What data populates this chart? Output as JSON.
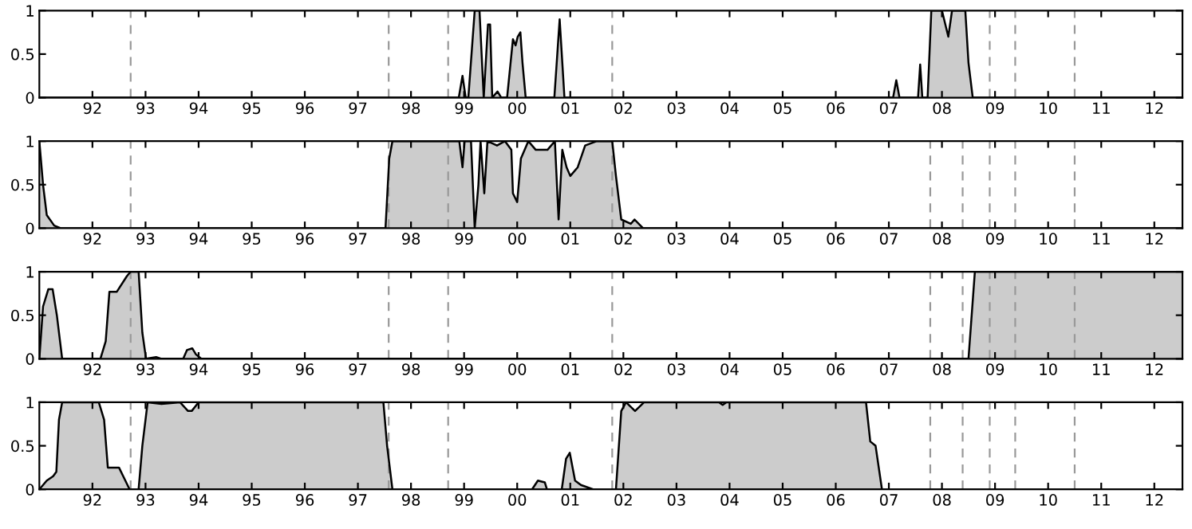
{
  "chart_data": [
    {
      "type": "area",
      "xlim": [
        1991.0,
        2012.53
      ],
      "ylim": [
        0,
        1
      ],
      "yticks": [
        0,
        0.5,
        1
      ],
      "xticks": [
        {
          "value": 1992,
          "label": "92"
        },
        {
          "value": 1993,
          "label": "93"
        },
        {
          "value": 1994,
          "label": "94"
        },
        {
          "value": 1995,
          "label": "95"
        },
        {
          "value": 1996,
          "label": "96"
        },
        {
          "value": 1997,
          "label": "97"
        },
        {
          "value": 1998,
          "label": "98"
        },
        {
          "value": 1999,
          "label": "99"
        },
        {
          "value": 2000,
          "label": "00"
        },
        {
          "value": 2001,
          "label": "01"
        },
        {
          "value": 2002,
          "label": "02"
        },
        {
          "value": 2003,
          "label": "03"
        },
        {
          "value": 2004,
          "label": "04"
        },
        {
          "value": 2005,
          "label": "05"
        },
        {
          "value": 2006,
          "label": "06"
        },
        {
          "value": 2007,
          "label": "07"
        },
        {
          "value": 2008,
          "label": "08"
        },
        {
          "value": 2009,
          "label": "09"
        },
        {
          "value": 2010,
          "label": "10"
        },
        {
          "value": 2011,
          "label": "11"
        },
        {
          "value": 2012,
          "label": "12"
        }
      ],
      "grid": false,
      "legend": false,
      "ref_lines": [
        {
          "axis": "x",
          "value": 1992.72,
          "color": "#999999",
          "line_style": "dashed"
        },
        {
          "axis": "x",
          "value": 1997.58,
          "color": "#999999",
          "line_style": "dashed"
        },
        {
          "axis": "x",
          "value": 1998.7,
          "color": "#999999",
          "line_style": "dashed"
        },
        {
          "axis": "x",
          "value": 2001.79,
          "color": "#999999",
          "line_style": "dashed"
        },
        {
          "axis": "x",
          "value": 2008.9,
          "color": "#999999",
          "line_style": "dashed"
        },
        {
          "axis": "x",
          "value": 2009.38,
          "color": "#999999",
          "line_style": "dashed"
        },
        {
          "axis": "x",
          "value": 2010.5,
          "color": "#999999",
          "line_style": "dashed"
        }
      ],
      "series": [
        {
          "color": "#cccccc",
          "x": [
            1991.0,
            1998.9,
            1998.97,
            1999.03,
            1999.08,
            1999.2,
            1999.29,
            1999.37,
            1999.45,
            1999.49,
            1999.53,
            1999.63,
            1999.7,
            1999.81,
            1999.92,
            1999.97,
            2000.01,
            2000.06,
            2000.1,
            2000.16,
            2000.7,
            2000.8,
            2000.89,
            2007.08,
            2007.14,
            2007.2,
            2007.55,
            2007.59,
            2007.63,
            2007.73,
            2007.8,
            2008.0,
            2008.12,
            2008.19,
            2008.44,
            2008.5,
            2008.58,
            2012.53
          ],
          "values": [
            0,
            0,
            0.25,
            0,
            0,
            1,
            1,
            0,
            0.84,
            0.84,
            0,
            0.07,
            0,
            0,
            0.67,
            0.6,
            0.7,
            0.75,
            0.4,
            0,
            0,
            0.9,
            0,
            0,
            0.2,
            0,
            0,
            0.38,
            0,
            0,
            1,
            1,
            0.7,
            1,
            1,
            0.4,
            0,
            0
          ]
        }
      ]
    },
    {
      "type": "area",
      "xlim": [
        1991.0,
        2012.53
      ],
      "ylim": [
        0,
        1
      ],
      "yticks": [
        0,
        0.5,
        1
      ],
      "xticks": [
        {
          "value": 1992,
          "label": "92"
        },
        {
          "value": 1993,
          "label": "93"
        },
        {
          "value": 1994,
          "label": "94"
        },
        {
          "value": 1995,
          "label": "95"
        },
        {
          "value": 1996,
          "label": "96"
        },
        {
          "value": 1997,
          "label": "97"
        },
        {
          "value": 1998,
          "label": "98"
        },
        {
          "value": 1999,
          "label": "99"
        },
        {
          "value": 2000,
          "label": "00"
        },
        {
          "value": 2001,
          "label": "01"
        },
        {
          "value": 2002,
          "label": "02"
        },
        {
          "value": 2003,
          "label": "03"
        },
        {
          "value": 2004,
          "label": "04"
        },
        {
          "value": 2005,
          "label": "05"
        },
        {
          "value": 2006,
          "label": "06"
        },
        {
          "value": 2007,
          "label": "07"
        },
        {
          "value": 2008,
          "label": "08"
        },
        {
          "value": 2009,
          "label": "09"
        },
        {
          "value": 2010,
          "label": "10"
        },
        {
          "value": 2011,
          "label": "11"
        },
        {
          "value": 2012,
          "label": "12"
        }
      ],
      "grid": false,
      "legend": false,
      "ref_lines": [
        {
          "axis": "x",
          "value": 1992.72,
          "color": "#999999",
          "line_style": "dashed"
        },
        {
          "axis": "x",
          "value": 1997.58,
          "color": "#999999",
          "line_style": "dashed"
        },
        {
          "axis": "x",
          "value": 1998.7,
          "color": "#999999",
          "line_style": "dashed"
        },
        {
          "axis": "x",
          "value": 2001.79,
          "color": "#999999",
          "line_style": "dashed"
        },
        {
          "axis": "x",
          "value": 2007.78,
          "color": "#999999",
          "line_style": "dashed"
        },
        {
          "axis": "x",
          "value": 2008.39,
          "color": "#999999",
          "line_style": "dashed"
        },
        {
          "axis": "x",
          "value": 2008.9,
          "color": "#999999",
          "line_style": "dashed"
        },
        {
          "axis": "x",
          "value": 2009.38,
          "color": "#999999",
          "line_style": "dashed"
        },
        {
          "axis": "x",
          "value": 2010.5,
          "color": "#999999",
          "line_style": "dashed"
        }
      ],
      "series": [
        {
          "color": "#cccccc",
          "x": [
            1991.0,
            1991.07,
            1991.14,
            1991.28,
            1991.4,
            1997.52,
            1997.59,
            1997.65,
            1998.91,
            1998.97,
            1999.01,
            1999.13,
            1999.2,
            1999.27,
            1999.31,
            1999.38,
            1999.44,
            1999.62,
            1999.77,
            1999.89,
            1999.92,
            2000.0,
            2000.07,
            2000.21,
            2000.35,
            2000.57,
            2000.71,
            2000.78,
            2000.85,
            2000.93,
            2001.0,
            2001.14,
            2001.28,
            2001.5,
            2001.79,
            2001.86,
            2001.96,
            2002.14,
            2002.21,
            2002.37,
            2012.53
          ],
          "values": [
            1,
            0.5,
            0.15,
            0.03,
            0,
            0,
            0.8,
            1,
            1,
            0.7,
            1,
            1,
            0,
            0.5,
            1,
            0.4,
            1,
            0.95,
            1,
            0.9,
            0.4,
            0.3,
            0.8,
            1,
            0.9,
            0.9,
            1,
            0.1,
            0.9,
            0.7,
            0.6,
            0.7,
            0.95,
            1,
            1,
            0.6,
            0.1,
            0.05,
            0.1,
            0,
            0
          ]
        }
      ]
    },
    {
      "type": "area",
      "xlim": [
        1991.0,
        2012.53
      ],
      "ylim": [
        0,
        1
      ],
      "yticks": [
        0,
        0.5,
        1
      ],
      "xticks": [
        {
          "value": 1992,
          "label": "92"
        },
        {
          "value": 1993,
          "label": "93"
        },
        {
          "value": 1994,
          "label": "94"
        },
        {
          "value": 1995,
          "label": "95"
        },
        {
          "value": 1996,
          "label": "96"
        },
        {
          "value": 1997,
          "label": "97"
        },
        {
          "value": 1998,
          "label": "98"
        },
        {
          "value": 1999,
          "label": "99"
        },
        {
          "value": 2000,
          "label": "00"
        },
        {
          "value": 2001,
          "label": "01"
        },
        {
          "value": 2002,
          "label": "02"
        },
        {
          "value": 2003,
          "label": "03"
        },
        {
          "value": 2004,
          "label": "04"
        },
        {
          "value": 2005,
          "label": "05"
        },
        {
          "value": 2006,
          "label": "06"
        },
        {
          "value": 2007,
          "label": "07"
        },
        {
          "value": 2008,
          "label": "08"
        },
        {
          "value": 2009,
          "label": "09"
        },
        {
          "value": 2010,
          "label": "10"
        },
        {
          "value": 2011,
          "label": "11"
        },
        {
          "value": 2012,
          "label": "12"
        }
      ],
      "grid": false,
      "legend": false,
      "ref_lines": [
        {
          "axis": "x",
          "value": 1992.72,
          "color": "#999999",
          "line_style": "dashed"
        },
        {
          "axis": "x",
          "value": 1997.58,
          "color": "#999999",
          "line_style": "dashed"
        },
        {
          "axis": "x",
          "value": 1998.7,
          "color": "#999999",
          "line_style": "dashed"
        },
        {
          "axis": "x",
          "value": 2001.79,
          "color": "#999999",
          "line_style": "dashed"
        },
        {
          "axis": "x",
          "value": 2007.78,
          "color": "#999999",
          "line_style": "dashed"
        },
        {
          "axis": "x",
          "value": 2008.39,
          "color": "#999999",
          "line_style": "dashed"
        },
        {
          "axis": "x",
          "value": 2008.9,
          "color": "#999999",
          "line_style": "dashed"
        },
        {
          "axis": "x",
          "value": 2009.38,
          "color": "#999999",
          "line_style": "dashed"
        },
        {
          "axis": "x",
          "value": 2010.5,
          "color": "#999999",
          "line_style": "dashed"
        }
      ],
      "series": [
        {
          "color": "#cccccc",
          "x": [
            1991.0,
            1991.07,
            1991.17,
            1991.25,
            1991.33,
            1991.43,
            1992.15,
            1992.25,
            1992.32,
            1992.46,
            1992.65,
            1992.72,
            1992.87,
            1992.94,
            1993.01,
            1993.2,
            1993.3,
            1993.71,
            1993.78,
            1993.88,
            1993.95,
            1994.05,
            2008.5,
            2008.62,
            2012.53
          ],
          "values": [
            0,
            0.6,
            0.8,
            0.8,
            0.5,
            0,
            0,
            0.2,
            0.77,
            0.77,
            0.95,
            1,
            1,
            0.3,
            0,
            0.02,
            0,
            0,
            0.1,
            0.12,
            0.05,
            0,
            0,
            1,
            1
          ]
        }
      ]
    },
    {
      "type": "area",
      "xlim": [
        1991.0,
        2012.53
      ],
      "ylim": [
        0,
        1
      ],
      "yticks": [
        0,
        0.5,
        1
      ],
      "xticks": [
        {
          "value": 1992,
          "label": "92"
        },
        {
          "value": 1993,
          "label": "93"
        },
        {
          "value": 1994,
          "label": "94"
        },
        {
          "value": 1995,
          "label": "95"
        },
        {
          "value": 1996,
          "label": "96"
        },
        {
          "value": 1997,
          "label": "97"
        },
        {
          "value": 1998,
          "label": "98"
        },
        {
          "value": 1999,
          "label": "99"
        },
        {
          "value": 2000,
          "label": "00"
        },
        {
          "value": 2001,
          "label": "01"
        },
        {
          "value": 2002,
          "label": "02"
        },
        {
          "value": 2003,
          "label": "03"
        },
        {
          "value": 2004,
          "label": "04"
        },
        {
          "value": 2005,
          "label": "05"
        },
        {
          "value": 2006,
          "label": "06"
        },
        {
          "value": 2007,
          "label": "07"
        },
        {
          "value": 2008,
          "label": "08"
        },
        {
          "value": 2009,
          "label": "09"
        },
        {
          "value": 2010,
          "label": "10"
        },
        {
          "value": 2011,
          "label": "11"
        },
        {
          "value": 2012,
          "label": "12"
        }
      ],
      "grid": false,
      "legend": false,
      "ref_lines": [
        {
          "axis": "x",
          "value": 1992.72,
          "color": "#999999",
          "line_style": "dashed"
        },
        {
          "axis": "x",
          "value": 1997.58,
          "color": "#999999",
          "line_style": "dashed"
        },
        {
          "axis": "x",
          "value": 1998.7,
          "color": "#999999",
          "line_style": "dashed"
        },
        {
          "axis": "x",
          "value": 2001.79,
          "color": "#999999",
          "line_style": "dashed"
        },
        {
          "axis": "x",
          "value": 2007.78,
          "color": "#999999",
          "line_style": "dashed"
        },
        {
          "axis": "x",
          "value": 2008.39,
          "color": "#999999",
          "line_style": "dashed"
        },
        {
          "axis": "x",
          "value": 2008.9,
          "color": "#999999",
          "line_style": "dashed"
        },
        {
          "axis": "x",
          "value": 2009.38,
          "color": "#999999",
          "line_style": "dashed"
        },
        {
          "axis": "x",
          "value": 2010.5,
          "color": "#999999",
          "line_style": "dashed"
        }
      ],
      "series": [
        {
          "color": "#cccccc",
          "x": [
            1991.0,
            1991.14,
            1991.26,
            1991.32,
            1991.37,
            1991.43,
            1992.12,
            1992.22,
            1992.29,
            1992.5,
            1992.62,
            1992.7,
            1992.87,
            1992.94,
            1993.04,
            1993.3,
            1993.65,
            1993.8,
            1993.87,
            1994.0,
            1997.48,
            1997.55,
            1997.65,
            2000.28,
            2000.39,
            2000.52,
            2000.56,
            2000.84,
            2000.92,
            2000.99,
            2001.09,
            2001.2,
            2001.43,
            2001.86,
            2001.96,
            2002.05,
            2002.22,
            2002.39,
            2003.8,
            2003.87,
            2003.94,
            2006.57,
            2006.65,
            2006.75,
            2006.87,
            2012.53
          ],
          "values": [
            0,
            0.1,
            0.15,
            0.2,
            0.8,
            1,
            1,
            0.8,
            0.25,
            0.25,
            0.1,
            0,
            0,
            0.5,
            1,
            0.98,
            1,
            0.9,
            0.9,
            1,
            1,
            0.5,
            0,
            0,
            0.1,
            0.08,
            0,
            0,
            0.35,
            0.42,
            0.1,
            0.05,
            0,
            0,
            0.9,
            1,
            0.9,
            1,
            1,
            0.97,
            1,
            1,
            0.55,
            0.5,
            0,
            0
          ]
        }
      ]
    }
  ]
}
